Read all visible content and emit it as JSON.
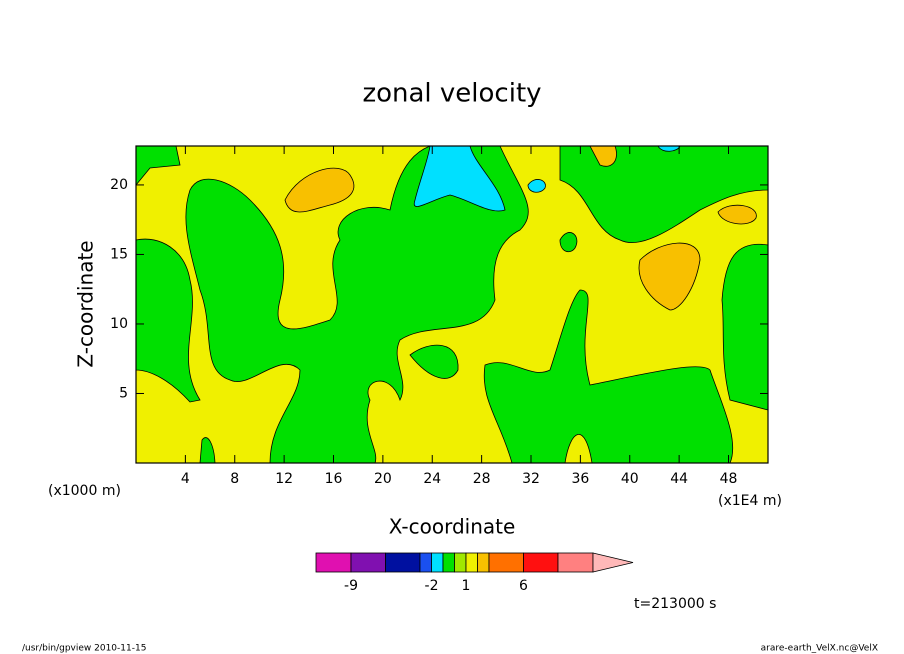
{
  "chart_data": {
    "type": "contour",
    "title": "zonal velocity",
    "xlabel": "X-coordinate",
    "ylabel": "Z-coordinate",
    "x_unit_left": "(x1000 m)",
    "x_unit_right": "(x1E4 m)",
    "xlim": [
      0,
      51.2
    ],
    "xticks": [
      4,
      8,
      12,
      16,
      20,
      24,
      28,
      32,
      36,
      40,
      44,
      48
    ],
    "ylim": [
      0,
      22.8
    ],
    "yticks": [
      5,
      10,
      15,
      20
    ],
    "colorbar": {
      "levels": [
        -9,
        -6,
        -3,
        -2,
        -1,
        0,
        1,
        2,
        3,
        6,
        9
      ],
      "colors": [
        "#e010b0",
        "#8010b0",
        "#0010a0",
        "#1a50f0",
        "#00e0ff",
        "#00e000",
        "#a0e800",
        "#f0f000",
        "#f8c000",
        "#ff7000",
        "#ff1010",
        "#ff8080"
      ],
      "extend_color": "#ffb8b8",
      "ticks": [
        -9,
        -2,
        1,
        6
      ]
    },
    "annotation": "t=213000 s",
    "footer_left": "/usr/bin/gpview  2010-11-15",
    "footer_right": "arare-earth_VelX.nc@VelX"
  }
}
